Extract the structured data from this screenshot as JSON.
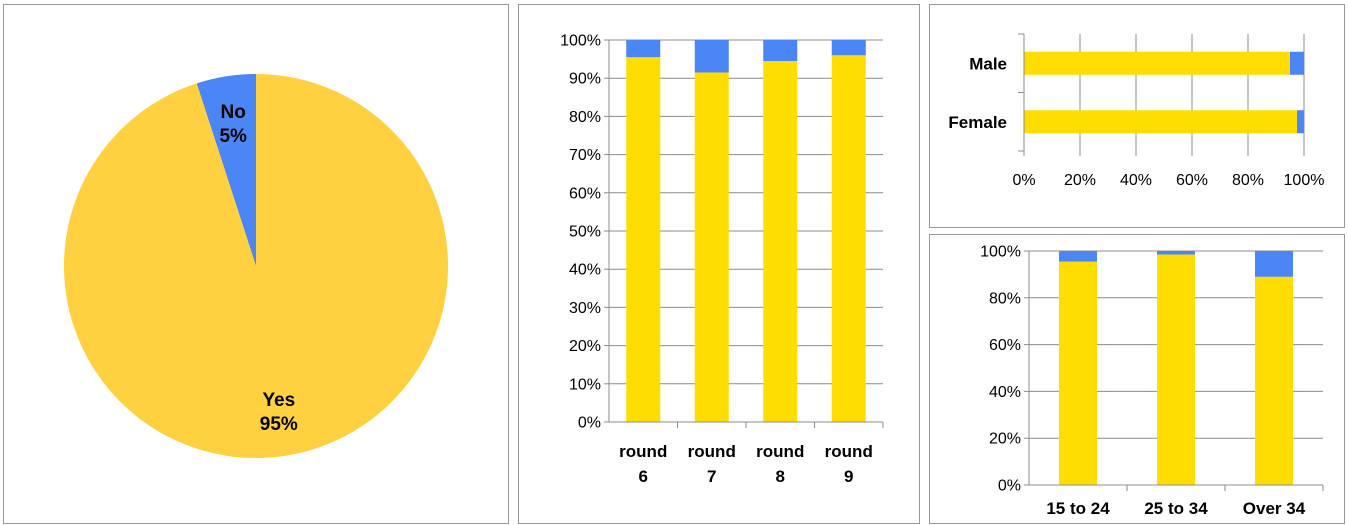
{
  "chart_data": [
    {
      "type": "pie",
      "slices": [
        {
          "label": "No",
          "pct_label": "5%",
          "value": 5,
          "color": "#4a86f5"
        },
        {
          "label": "Yes",
          "pct_label": "95%",
          "value": 95,
          "color": "#ffd03f"
        }
      ]
    },
    {
      "type": "bar",
      "stacked": true,
      "orientation": "vertical",
      "categories": [
        [
          "round",
          "6"
        ],
        [
          "round",
          "7"
        ],
        [
          "round",
          "8"
        ],
        [
          "round",
          "9"
        ]
      ],
      "series": [
        {
          "values": [
            95.5,
            91.5,
            94.5,
            96
          ],
          "color": "#ffdd00"
        },
        {
          "values": [
            4.5,
            8.5,
            5.5,
            4
          ],
          "color": "#4a86f5"
        }
      ],
      "ylim": [
        0,
        100
      ],
      "yticks": [
        "0%",
        "10%",
        "20%",
        "30%",
        "40%",
        "50%",
        "60%",
        "70%",
        "80%",
        "90%",
        "100%"
      ],
      "grid": true
    },
    {
      "type": "bar",
      "stacked": true,
      "orientation": "horizontal",
      "categories": [
        "Male",
        "Female"
      ],
      "series": [
        {
          "values": [
            95,
            97.5
          ],
          "color": "#ffdd00"
        },
        {
          "values": [
            5,
            2.5
          ],
          "color": "#4a86f5"
        }
      ],
      "xlim": [
        0,
        100
      ],
      "xticks": [
        "0%",
        "20%",
        "40%",
        "60%",
        "80%",
        "100%"
      ],
      "grid": true
    },
    {
      "type": "bar",
      "stacked": true,
      "orientation": "vertical",
      "categories": [
        "15 to 24",
        "25 to 34",
        "Over 34"
      ],
      "series": [
        {
          "values": [
            95.5,
            98.5,
            89
          ],
          "color": "#ffdd00"
        },
        {
          "values": [
            4.5,
            1.5,
            11
          ],
          "color": "#4a86f5"
        }
      ],
      "ylim": [
        0,
        100
      ],
      "yticks": [
        "0%",
        "20%",
        "40%",
        "60%",
        "80%",
        "100%"
      ],
      "grid": true
    }
  ]
}
